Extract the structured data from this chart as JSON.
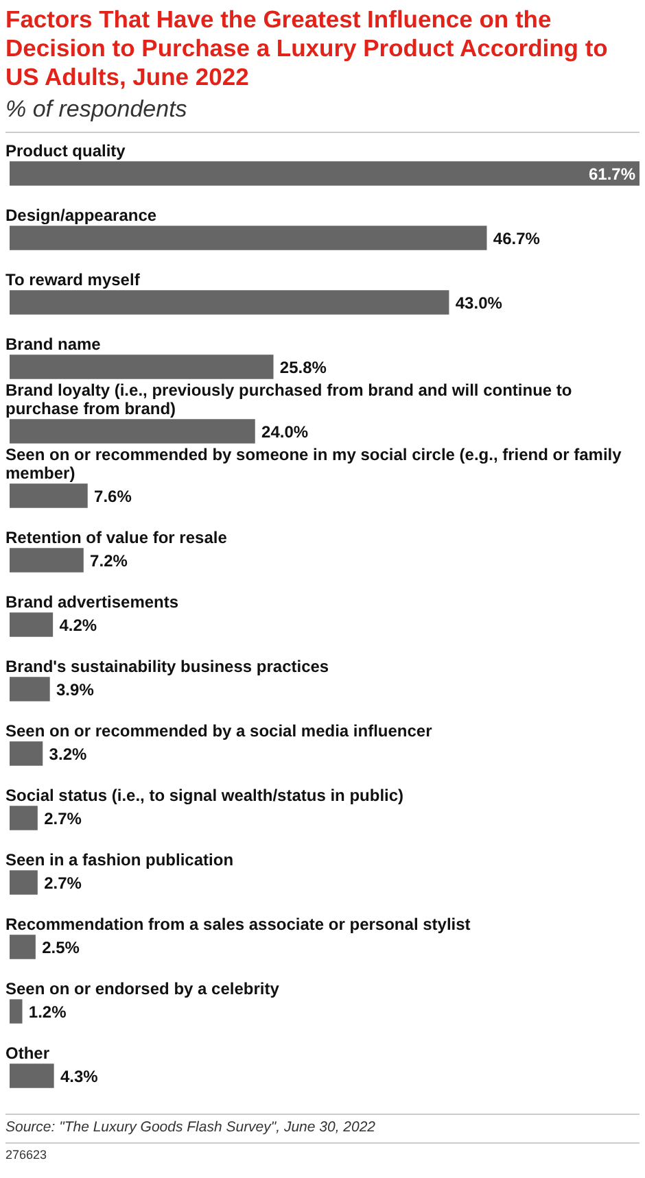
{
  "chart_data": {
    "type": "bar",
    "orientation": "horizontal",
    "title": "Factors That Have the Greatest Influence on the Decision to Purchase a Luxury Product According to US Adults, June 2022",
    "subtitle": "% of respondents",
    "categories": [
      "Product quality",
      "Design/appearance",
      "To reward myself",
      "Brand name",
      "Brand loyalty (i.e., previously purchased from brand and will continue to purchase from brand)",
      "Seen on or recommended by someone in my social circle (e.g., friend or family member)",
      "Retention of value for resale",
      "Brand advertisements",
      "Brand's sustainability business practices",
      "Seen on or recommended by a social media influencer",
      "Social status (i.e., to signal wealth/status in public)",
      "Seen in a fashion publication",
      "Recommendation from a sales associate or personal stylist",
      "Seen on or endorsed by a celebrity",
      "Other"
    ],
    "values": [
      61.7,
      46.7,
      43.0,
      25.8,
      24.0,
      7.6,
      7.2,
      4.2,
      3.9,
      3.2,
      2.7,
      2.7,
      2.5,
      1.2,
      4.3
    ],
    "value_labels": [
      "61.7%",
      "46.7%",
      "43.0%",
      "25.8%",
      "24.0%",
      "7.6%",
      "7.2%",
      "4.2%",
      "3.9%",
      "3.2%",
      "2.7%",
      "2.7%",
      "2.5%",
      "1.2%",
      "4.3%"
    ],
    "color": "#666666",
    "annotations": [
      "Source: \"The Luxury Goods Flash Survey\", June 30, 2022",
      "276623"
    ]
  }
}
